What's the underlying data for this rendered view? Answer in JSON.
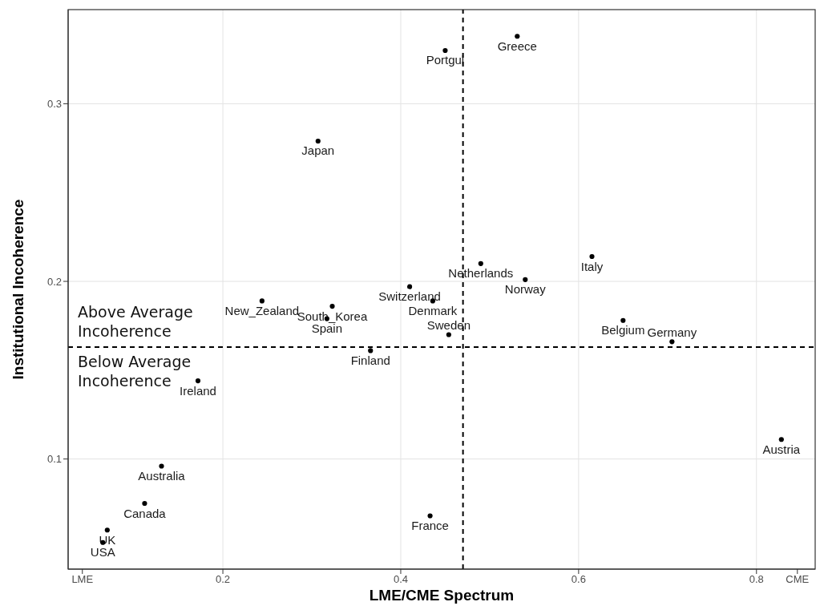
{
  "chart_data": {
    "type": "scatter",
    "xlabel": "LME/CME Spectrum",
    "ylabel": "Institutional Incoherence",
    "x": [
      0.531,
      0.45,
      0.307,
      0.49,
      0.615,
      0.54,
      0.41,
      0.244,
      0.323,
      0.317,
      0.436,
      0.454,
      0.366,
      0.172,
      0.131,
      0.112,
      0.07,
      0.065,
      0.433,
      0.65,
      0.705,
      0.828
    ],
    "series": [
      {
        "color": "#000000",
        "values": [
          0.338,
          0.33,
          0.279,
          0.21,
          0.214,
          0.201,
          0.197,
          0.189,
          0.186,
          0.179,
          0.189,
          0.17,
          0.161,
          0.144,
          0.096,
          0.075,
          0.06,
          0.053,
          0.068,
          0.178,
          0.166,
          0.111
        ]
      }
    ],
    "xlim": [
      0.026,
      0.866
    ],
    "ylim": [
      0.038,
      0.353
    ],
    "xticks": [
      {
        "value": 0.042,
        "label": "LME"
      },
      0.2,
      0.4,
      0.6,
      0.8,
      {
        "value": 0.846,
        "label": "CME"
      }
    ],
    "yticks": [
      0.1,
      0.2,
      0.3
    ],
    "grid": true,
    "marker": "circle",
    "ref_lines": [
      {
        "axis": "x",
        "value": 0.47,
        "label": null,
        "color": "#000000",
        "line_style": "dashed"
      },
      {
        "axis": "y",
        "value": 0.163,
        "label": null,
        "color": "#000000",
        "line_style": "dashed"
      }
    ],
    "annotations": [
      "Above Average Incoherence",
      "Below Average Incoherence",
      {
        "text": "Greece",
        "x": 0.531,
        "y": 0.338
      },
      {
        "text": "Portgul",
        "x": 0.45,
        "y": 0.33
      },
      {
        "text": "Japan",
        "x": 0.307,
        "y": 0.279
      },
      {
        "text": "Netherlands",
        "x": 0.49,
        "y": 0.21
      },
      {
        "text": "Italy",
        "x": 0.615,
        "y": 0.214
      },
      {
        "text": "Norway",
        "x": 0.54,
        "y": 0.201
      },
      {
        "text": "Switzerland",
        "x": 0.41,
        "y": 0.197
      },
      {
        "text": "New_Zealand",
        "x": 0.244,
        "y": 0.189
      },
      {
        "text": "South_Korea",
        "x": 0.323,
        "y": 0.186
      },
      {
        "text": "Spain",
        "x": 0.317,
        "y": 0.179
      },
      {
        "text": "Denmark",
        "x": 0.436,
        "y": 0.189
      },
      {
        "text": "Sweden",
        "x": 0.454,
        "y": 0.17
      },
      {
        "text": "Finland",
        "x": 0.366,
        "y": 0.161
      },
      {
        "text": "Ireland",
        "x": 0.172,
        "y": 0.144
      },
      {
        "text": "Australia",
        "x": 0.131,
        "y": 0.096
      },
      {
        "text": "Canada",
        "x": 0.112,
        "y": 0.075
      },
      {
        "text": "UK",
        "x": 0.07,
        "y": 0.06
      },
      {
        "text": "USA",
        "x": 0.065,
        "y": 0.053
      },
      {
        "text": "France",
        "x": 0.433,
        "y": 0.068
      },
      {
        "text": "Belgium",
        "x": 0.65,
        "y": 0.178
      },
      {
        "text": "Germany",
        "x": 0.705,
        "y": 0.166
      },
      {
        "text": "Austria",
        "x": 0.828,
        "y": 0.111
      }
    ]
  }
}
